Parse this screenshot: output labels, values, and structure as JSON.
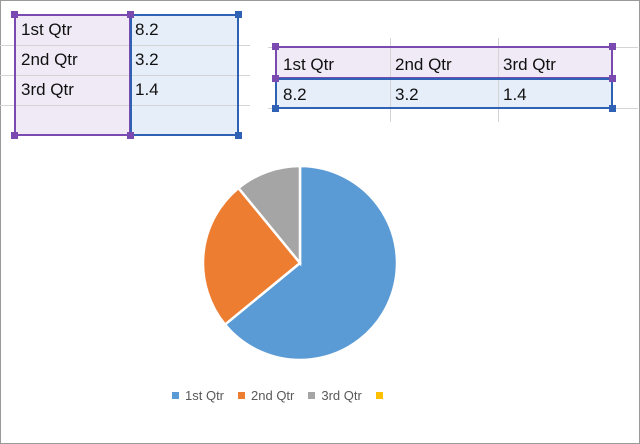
{
  "table_vertical": {
    "rows": [
      {
        "label": "1st Qtr",
        "value": "8.2"
      },
      {
        "label": "2nd Qtr",
        "value": "3.2"
      },
      {
        "label": "3rd Qtr",
        "value": "1.4"
      }
    ]
  },
  "table_horizontal": {
    "labels": [
      "1st Qtr",
      "2nd Qtr",
      "3rd Qtr"
    ],
    "values": [
      "8.2",
      "3.2",
      "1.4"
    ]
  },
  "colors": {
    "series_name_selection": "#7b4ab0",
    "values_selection": "#2f62b5"
  },
  "chart_data": {
    "type": "pie",
    "categories": [
      "1st Qtr",
      "2nd Qtr",
      "3rd Qtr",
      ""
    ],
    "values": [
      8.2,
      3.2,
      1.4,
      0
    ],
    "colors": [
      "#5b9bd5",
      "#ed7d31",
      "#a5a5a5",
      "#ffc000"
    ],
    "legend_position": "bottom",
    "legend": [
      "1st Qtr",
      "2nd Qtr",
      "3rd Qtr",
      ""
    ]
  }
}
